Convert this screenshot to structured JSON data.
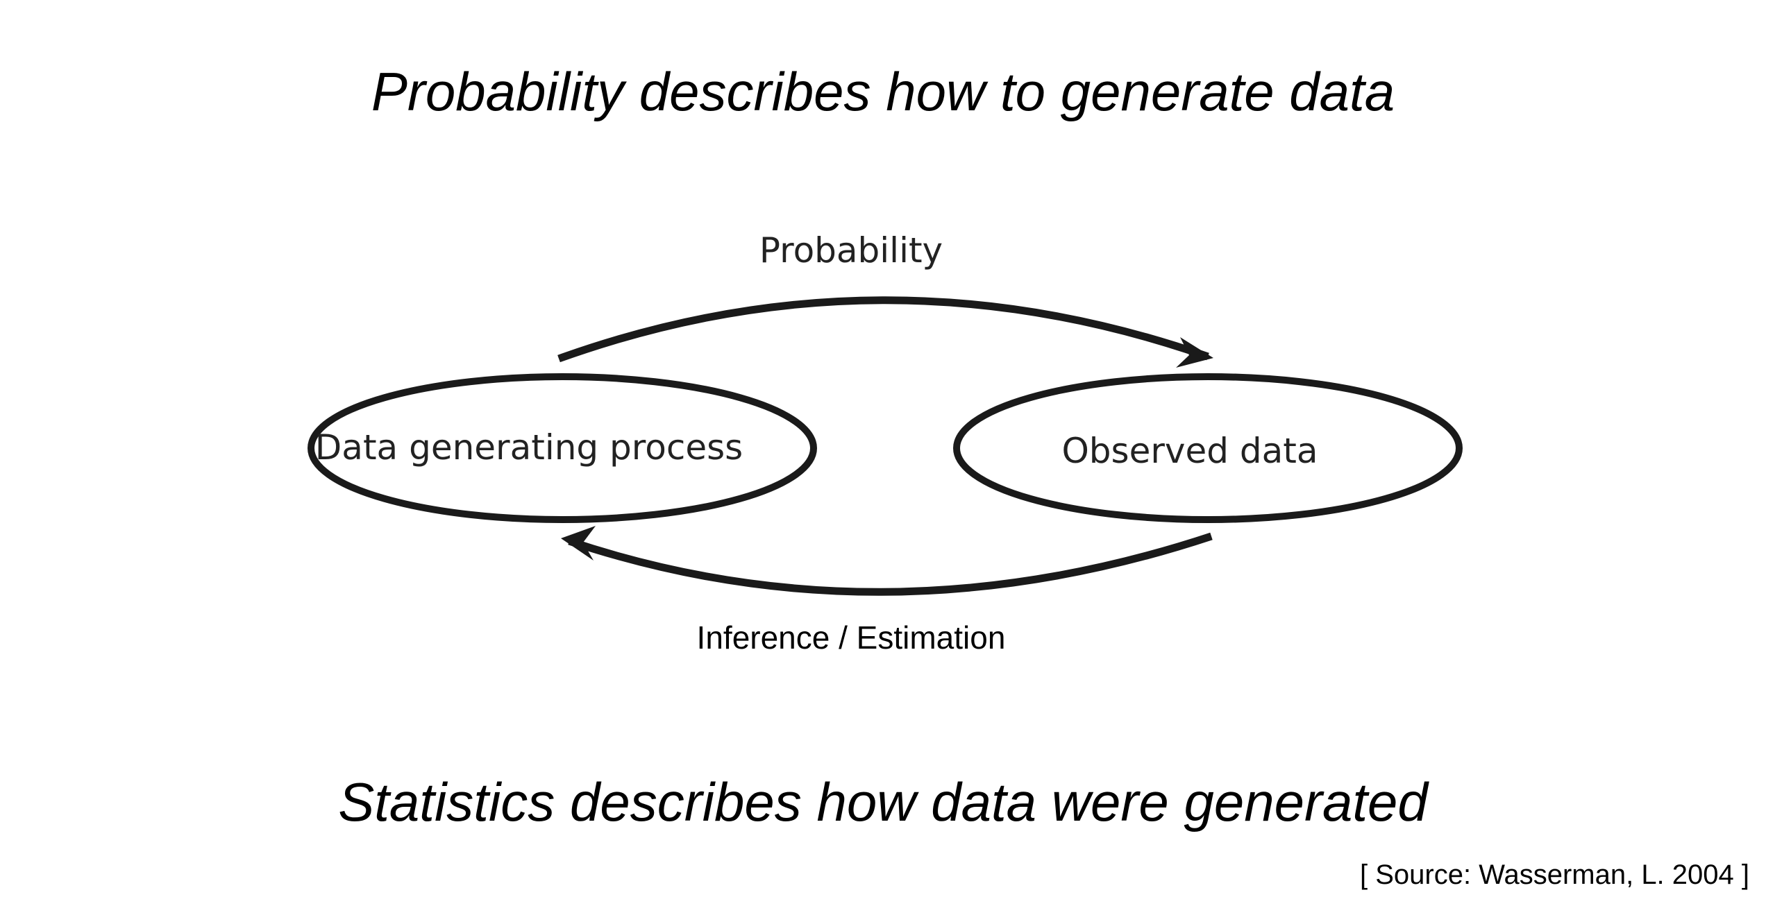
{
  "heading_top": "Probability describes how to generate data",
  "heading_bottom": "Statistics describes how data were generated",
  "source": "[ Source: Wasserman, L. 2004 ]",
  "diagram": {
    "nodes": {
      "left": "Data generating process",
      "right": "Observed data"
    },
    "edges": {
      "top": "Probability",
      "bottom": "Inference / Estimation"
    }
  },
  "colors": {
    "stroke": "#1a1a1a",
    "text": "#222222"
  }
}
